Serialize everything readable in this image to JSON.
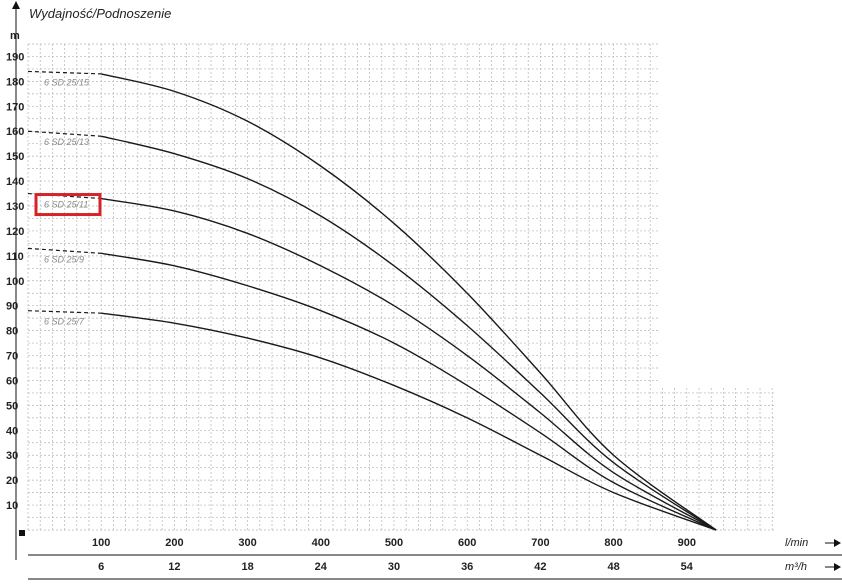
{
  "chart_data": {
    "type": "line",
    "title": "Wydajność/Podnoszenie",
    "ylabel": "m",
    "xlabel": "l/min",
    "x2label": "m³/h",
    "ylim": [
      0,
      195
    ],
    "xlim": [
      0,
      1000
    ],
    "y_ticks": [
      10,
      20,
      30,
      40,
      50,
      60,
      70,
      80,
      90,
      100,
      110,
      120,
      130,
      140,
      150,
      160,
      170,
      180,
      190
    ],
    "x_ticks": [
      100,
      200,
      300,
      400,
      500,
      600,
      700,
      800,
      900
    ],
    "x2_ticks": [
      6,
      12,
      18,
      24,
      30,
      36,
      42,
      48,
      54
    ],
    "grid": true,
    "highlighted_series": "6 SD 25/11",
    "highlight_color": "#d6232a",
    "series": [
      {
        "name": "6 SD 25/15",
        "x": [
          0,
          100,
          200,
          300,
          400,
          500,
          600,
          700,
          800,
          940
        ],
        "y": [
          184,
          183,
          176,
          164,
          146,
          123,
          95,
          63,
          30,
          0
        ]
      },
      {
        "name": "6 SD 25/13",
        "x": [
          0,
          100,
          200,
          300,
          400,
          500,
          600,
          700,
          800,
          940
        ],
        "y": [
          160,
          158,
          151,
          141,
          126,
          106,
          82,
          55,
          27,
          0
        ]
      },
      {
        "name": "6 SD 25/11",
        "x": [
          0,
          100,
          200,
          300,
          400,
          500,
          600,
          700,
          800,
          940
        ],
        "y": [
          135,
          133,
          128,
          119,
          106,
          90,
          70,
          47,
          23,
          0
        ]
      },
      {
        "name": "6 SD 25/9",
        "x": [
          0,
          100,
          200,
          300,
          400,
          500,
          600,
          700,
          800,
          940
        ],
        "y": [
          113,
          111,
          106,
          98,
          88,
          75,
          58,
          39,
          19,
          0
        ]
      },
      {
        "name": "6 SD 25/7",
        "x": [
          0,
          100,
          200,
          300,
          400,
          500,
          600,
          700,
          800,
          940
        ],
        "y": [
          88,
          87,
          83,
          77,
          69,
          58,
          45,
          30,
          15,
          0
        ]
      }
    ]
  }
}
